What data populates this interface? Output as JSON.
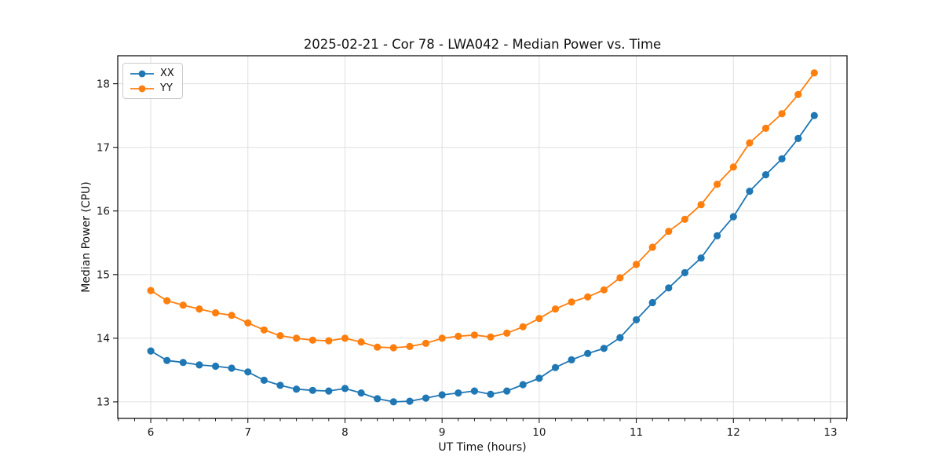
{
  "chart_data": {
    "type": "line",
    "title": "2025-02-21 - Cor 78 - LWA042 - Median Power vs. Time",
    "xlabel": "UT Time (hours)",
    "ylabel": "Median Power (CPU)",
    "x": [
      6.0,
      6.167,
      6.333,
      6.5,
      6.667,
      6.833,
      7.0,
      7.167,
      7.333,
      7.5,
      7.667,
      7.833,
      8.0,
      8.167,
      8.333,
      8.5,
      8.667,
      8.833,
      9.0,
      9.167,
      9.333,
      9.5,
      9.667,
      9.833,
      10.0,
      10.167,
      10.333,
      10.5,
      10.667,
      10.833,
      11.0,
      11.167,
      11.333,
      11.5,
      11.667,
      11.833,
      12.0,
      12.167,
      12.333,
      12.5,
      12.667,
      12.833
    ],
    "series": [
      {
        "name": "XX",
        "color": "#1f77b4",
        "marker": "circle",
        "values": [
          13.8,
          13.65,
          13.62,
          13.58,
          13.56,
          13.53,
          13.47,
          13.34,
          13.26,
          13.2,
          13.18,
          13.17,
          13.21,
          13.14,
          13.05,
          13.0,
          13.01,
          13.06,
          13.11,
          13.14,
          13.17,
          13.12,
          13.17,
          13.27,
          13.37,
          13.54,
          13.66,
          13.76,
          13.84,
          14.01,
          14.29,
          14.56,
          14.79,
          15.03,
          15.26,
          15.61,
          15.91,
          16.31,
          16.57,
          16.82,
          17.14,
          17.5
        ]
      },
      {
        "name": "YY",
        "color": "#ff7f0e",
        "marker": "circle",
        "values": [
          14.75,
          14.59,
          14.52,
          14.46,
          14.4,
          14.36,
          14.24,
          14.13,
          14.04,
          14.0,
          13.97,
          13.96,
          14.0,
          13.94,
          13.86,
          13.85,
          13.87,
          13.92,
          14.0,
          14.03,
          14.05,
          14.02,
          14.08,
          14.18,
          14.31,
          14.46,
          14.57,
          14.65,
          14.76,
          14.95,
          15.16,
          15.43,
          15.68,
          15.87,
          16.1,
          16.42,
          16.69,
          17.07,
          17.3,
          17.53,
          17.83,
          18.17
        ]
      }
    ],
    "xlim": [
      5.66,
      13.17
    ],
    "ylim": [
      12.74,
      18.44
    ],
    "x_ticks": [
      6,
      7,
      8,
      9,
      10,
      11,
      12,
      13
    ],
    "y_ticks": [
      13,
      14,
      15,
      16,
      17,
      18
    ],
    "x_minor_step": 0.16667,
    "grid": true,
    "legend_position": "upper left"
  },
  "colors": {
    "grid": "#e0e0e0",
    "spine": "#000000",
    "tick_text": "#1a1a1a",
    "background": "#ffffff"
  }
}
